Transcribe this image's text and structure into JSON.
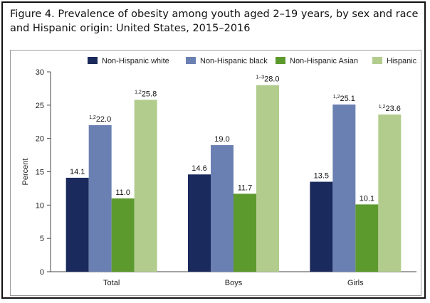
{
  "title": "Figure 4. Prevalence of obesity among youth aged 2–19 years, by sex and race and Hispanic origin: United States, 2015–2016",
  "chart_data": {
    "type": "bar",
    "categories": [
      "Total",
      "Boys",
      "Girls"
    ],
    "ylabel": "Percent",
    "xlabel": "",
    "ylim": [
      0,
      30
    ],
    "yticks": [
      0,
      5,
      10,
      15,
      20,
      25,
      30
    ],
    "legend_position": "top",
    "grid": false,
    "series": [
      {
        "name": "Non-Hispanic white",
        "color": "#1b2a5c",
        "values": [
          14.1,
          14.6,
          13.5
        ],
        "superscripts": [
          "",
          "",
          ""
        ]
      },
      {
        "name": "Non-Hispanic black",
        "color": "#6b80b2",
        "values": [
          22.0,
          19.0,
          25.1
        ],
        "superscripts": [
          "1,2",
          "",
          "1,2"
        ]
      },
      {
        "name": "Non-Hispanic Asian",
        "color": "#5c9a2e",
        "values": [
          11.0,
          11.7,
          10.1
        ],
        "superscripts": [
          "",
          "",
          ""
        ]
      },
      {
        "name": "Hispanic",
        "color": "#b2cc8e",
        "values": [
          25.8,
          28.0,
          23.6
        ],
        "superscripts": [
          "1,2",
          "1–3",
          "1,2"
        ]
      }
    ]
  }
}
